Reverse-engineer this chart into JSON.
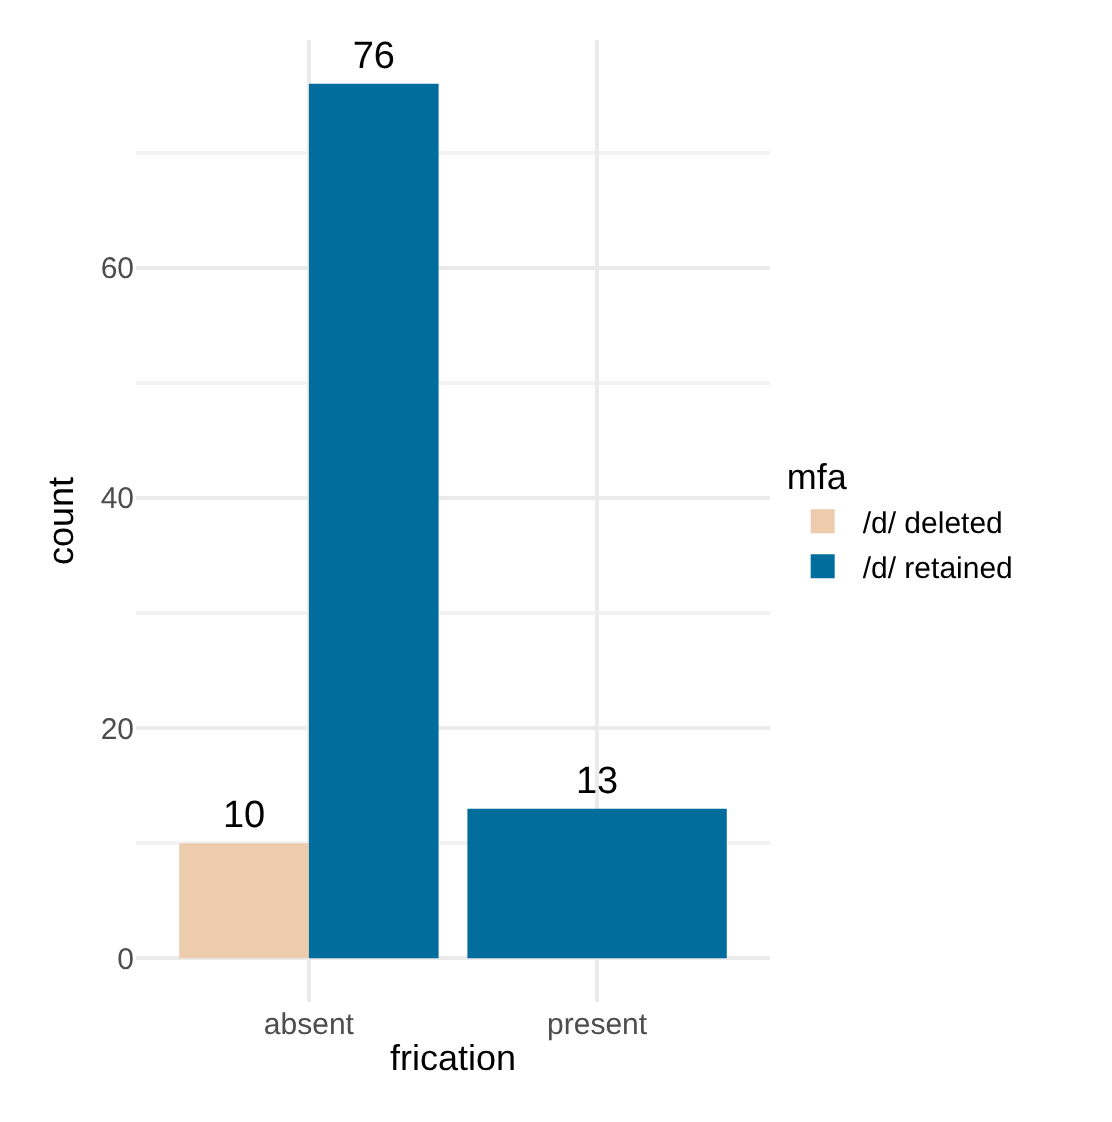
{
  "chart_data": {
    "type": "bar",
    "xlabel": "frication",
    "ylabel": "count",
    "legend_title": "mfa",
    "categories": [
      "absent",
      "present"
    ],
    "series": [
      {
        "name": "/d/ deleted",
        "color": "#edcbad",
        "values": [
          10,
          null
        ]
      },
      {
        "name": "/d/ retained",
        "color": "#006d9c",
        "values": [
          76,
          13
        ]
      }
    ],
    "ylim": [
      -3.8,
      79.8
    ],
    "yticks": [
      0,
      20,
      40,
      60
    ],
    "grid": true,
    "legend": "right",
    "data_labels": true
  }
}
